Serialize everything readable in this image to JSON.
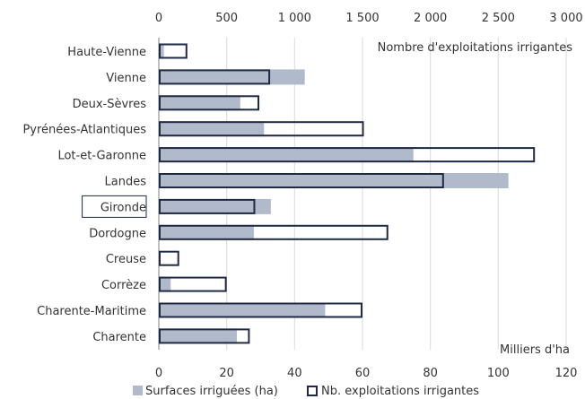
{
  "chart_data": {
    "type": "bar",
    "categories": [
      "Haute-Vienne",
      "Vienne",
      "Deux-Sèvres",
      "Pyrénées-Atlantiques",
      "Lot-et-Garonne",
      "Landes",
      "Gironde",
      "Dordogne",
      "Creuse",
      "Corrèze",
      "Charente-Maritime",
      "Charente"
    ],
    "highlighted_category": "Gironde",
    "series": [
      {
        "name": "Surfaces irriguées (ha)",
        "axis": "bottom",
        "color": "#b1bacb",
        "values": [
          1.5,
          43,
          24,
          31,
          75,
          103,
          33,
          28,
          0,
          3.5,
          49,
          23
        ]
      },
      {
        "name": "Nb. exploitations irrigantes",
        "axis": "top",
        "color": "#1f2a44",
        "style": "outline",
        "values": [
          210,
          820,
          740,
          1510,
          2770,
          2100,
          710,
          1690,
          150,
          500,
          1500,
          670
        ]
      }
    ],
    "x_bottom": {
      "label": "Milliers d'ha",
      "range": [
        0,
        120
      ],
      "ticks": [
        0,
        20,
        40,
        60,
        80,
        100,
        120
      ],
      "tick_labels": [
        "0",
        "20",
        "40",
        "60",
        "80",
        "100",
        "120"
      ]
    },
    "x_top": {
      "label": "Nombre d'exploitations irrigantes",
      "range": [
        0,
        3000
      ],
      "ticks": [
        0,
        500,
        1000,
        1500,
        2000,
        2500,
        3000
      ],
      "tick_labels": [
        "0",
        "500",
        "1 000",
        "1 500",
        "2 000",
        "2 500",
        "3 000"
      ]
    },
    "grid": true,
    "legend": "bottom"
  }
}
